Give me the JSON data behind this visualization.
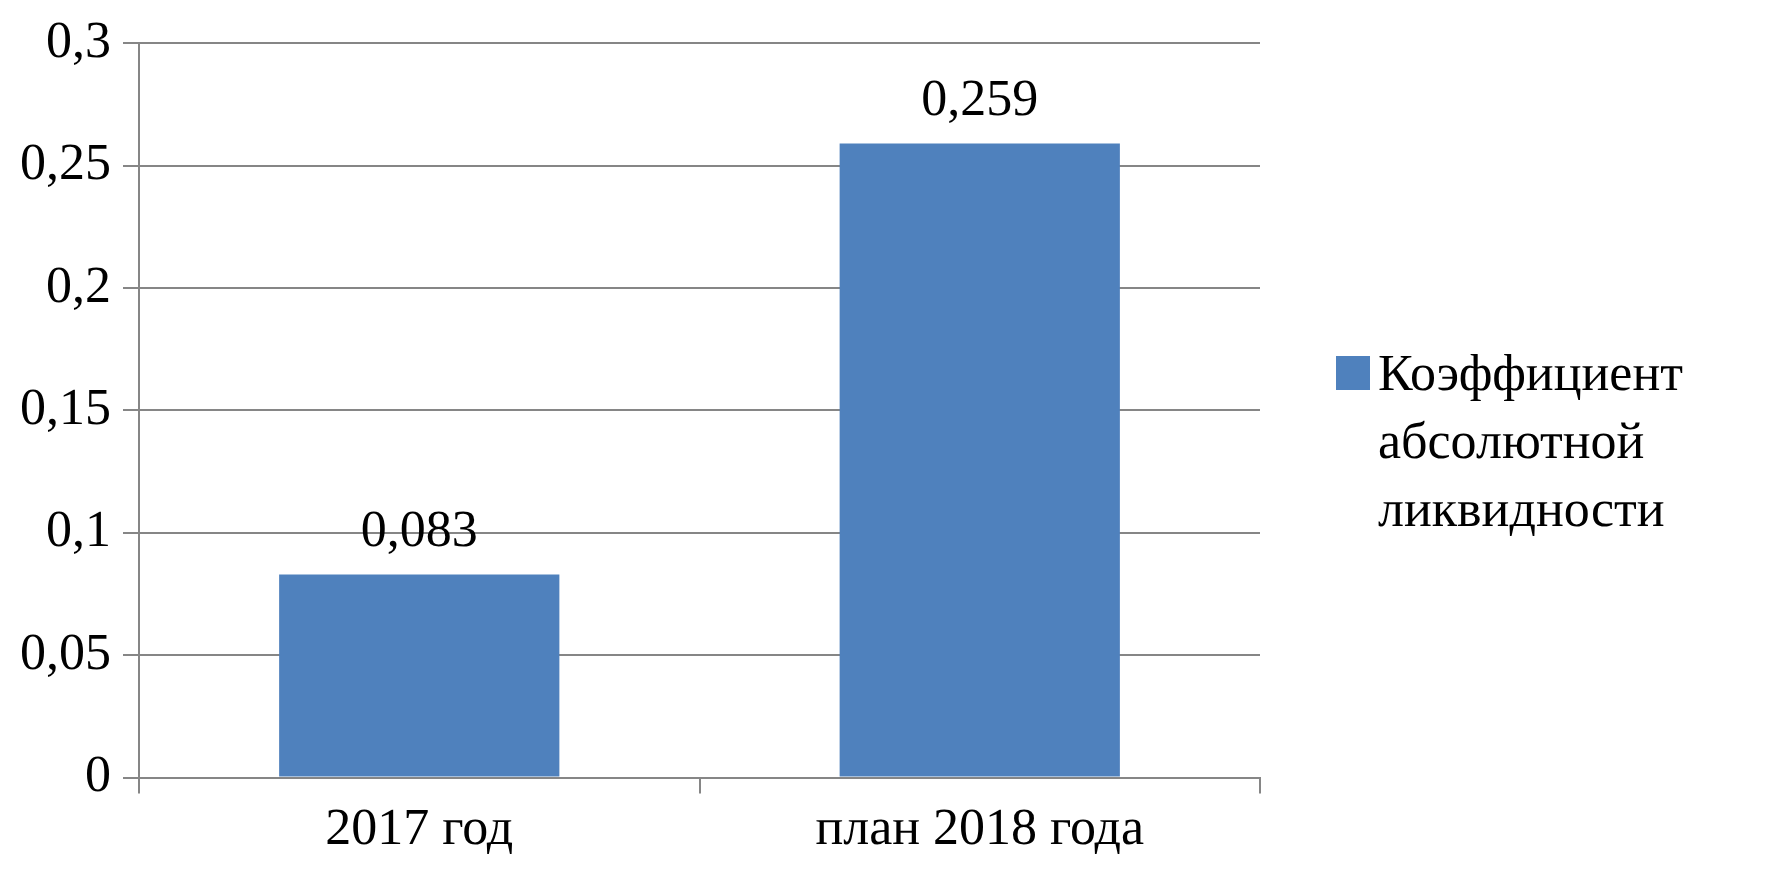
{
  "chart_data": {
    "type": "bar",
    "categories": [
      "2017 год",
      "план 2018 года"
    ],
    "series": [
      {
        "name": "Коэффициент абсолютной ликвидности",
        "color": "#4f81bd",
        "values": [
          0.083,
          0.259
        ],
        "value_labels": [
          "0,083",
          "0,259"
        ]
      }
    ],
    "ylim": [
      0,
      0.3
    ],
    "yticks": [
      {
        "value": 0,
        "label": "0"
      },
      {
        "value": 0.05,
        "label": "0,05"
      },
      {
        "value": 0.1,
        "label": "0,1"
      },
      {
        "value": 0.15,
        "label": "0,15"
      },
      {
        "value": 0.2,
        "label": "0,2"
      },
      {
        "value": 0.25,
        "label": "0,25"
      },
      {
        "value": 0.3,
        "label": "0,3"
      }
    ],
    "grid": "y",
    "legend": "right"
  }
}
